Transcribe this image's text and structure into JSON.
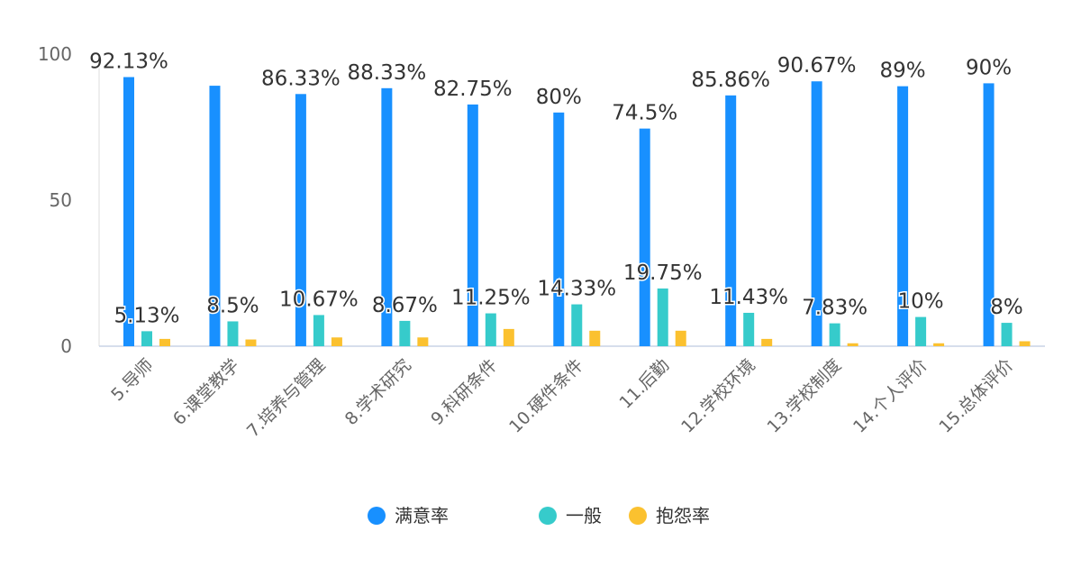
{
  "chart_data": {
    "type": "bar",
    "ylim": [
      0,
      100
    ],
    "yticks": [
      0,
      50,
      100
    ],
    "grid": false,
    "legend_position": "bottom",
    "categories": [
      "5.导师",
      "6.课堂教学",
      "7.培养与管理",
      "8.学术研究",
      "9.科研条件",
      "10.硬件条件",
      "11.后勤",
      "12.学校环境",
      "13.学校制度",
      "14.个人评价",
      "15.总体评价"
    ],
    "series": [
      {
        "name": "满意率",
        "color": "#1890FF",
        "values": [
          92.13,
          89.17,
          86.33,
          88.33,
          82.75,
          80,
          74.5,
          85.86,
          90.67,
          89,
          90
        ],
        "labels": [
          "92.13%",
          "",
          "86.33%",
          "88.33%",
          "82.75%",
          "80%",
          "74.5%",
          "85.86%",
          "90.67%",
          "89%",
          "90%"
        ]
      },
      {
        "name": "一般",
        "color": "#36CBCB",
        "values": [
          5.13,
          8.5,
          10.67,
          8.67,
          11.25,
          14.33,
          19.75,
          11.43,
          7.83,
          10,
          8
        ],
        "labels": [
          "5.13%",
          "8.5%",
          "10.67%",
          "8.67%",
          "11.25%",
          "14.33%",
          "19.75%",
          "11.43%",
          "7.83%",
          "10%",
          "8%"
        ]
      },
      {
        "name": "抱怨率",
        "color": "#FBC12F",
        "values": [
          2.5,
          2.3,
          3,
          3,
          5.9,
          5.3,
          5.3,
          2.5,
          1,
          1,
          1.7
        ],
        "labels": [
          "",
          "",
          "",
          "",
          "",
          "",
          "",
          "",
          "",
          "",
          ""
        ]
      }
    ]
  }
}
